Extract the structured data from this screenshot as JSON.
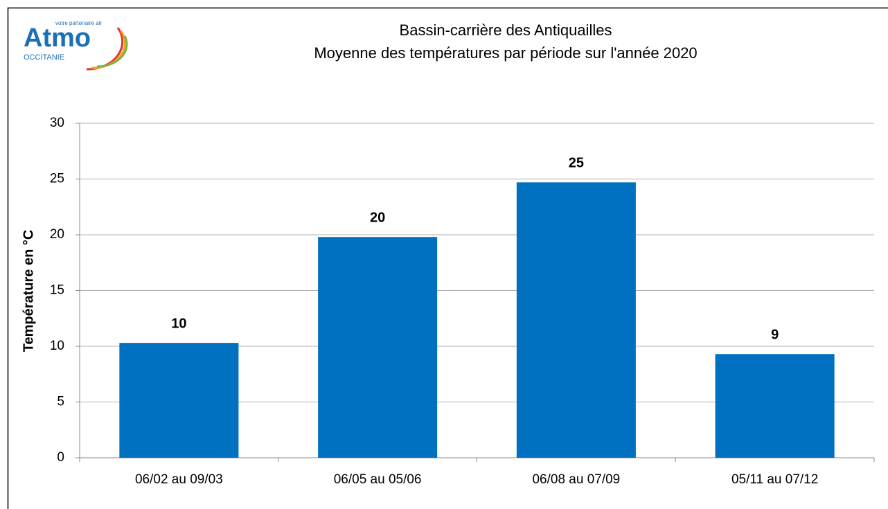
{
  "logo": {
    "name": "Atmo",
    "tagline": "votre partenaire air",
    "region": "OCCITANIE"
  },
  "chart_data": {
    "type": "bar",
    "title": "Bassin-carrière des Antiquailles",
    "subtitle": "Moyenne des températures par période sur l'année 2020",
    "y_label": "Température en °C",
    "categories": [
      "06/02 au 09/03",
      "06/05 au 05/06",
      "06/08 au 07/09",
      "05/11 au 07/12"
    ],
    "values": [
      10.3,
      19.8,
      24.7,
      9.3
    ],
    "value_labels": [
      "10",
      "20",
      "25",
      "9"
    ],
    "color": "#0070c0",
    "ylim": [
      0,
      30
    ],
    "yticks": [
      0,
      5,
      10,
      15,
      20,
      25,
      30
    ],
    "grid": true
  }
}
